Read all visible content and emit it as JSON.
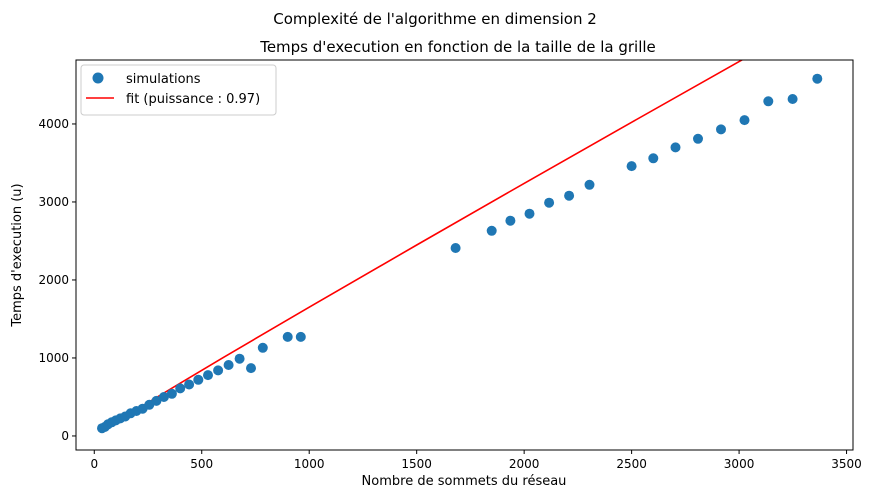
{
  "chart_data": {
    "type": "scatter",
    "suptitle": "Complexité de l'algorithme en dimension 2",
    "title": "Temps d'execution en fonction de la taille de la grille",
    "xlabel": "Nombre de sommets du réseau",
    "ylabel": "Temps d'execution (u)",
    "xlim": [
      -85,
      3530
    ],
    "ylim": [
      -180,
      4820
    ],
    "xticks": [
      0,
      500,
      1000,
      1500,
      2000,
      2500,
      3000,
      3500
    ],
    "yticks": [
      0,
      1000,
      2000,
      3000,
      4000
    ],
    "grid": false,
    "legend_position": "top-left",
    "colors": {
      "scatter": "#1f77b4",
      "fit": "#ff0000"
    },
    "series": [
      {
        "name": "simulations",
        "kind": "scatter",
        "x": [
          36,
          49,
          64,
          81,
          100,
          121,
          144,
          169,
          196,
          225,
          256,
          289,
          324,
          361,
          400,
          441,
          484,
          529,
          576,
          625,
          676,
          729,
          784,
          900,
          961,
          1681,
          1849,
          1936,
          2025,
          2116,
          2209,
          2304,
          2500,
          2601,
          2704,
          2809,
          2916,
          3025,
          3136,
          3249,
          3364
        ],
        "y": [
          100,
          115,
          150,
          175,
          200,
          225,
          250,
          290,
          320,
          350,
          400,
          450,
          500,
          540,
          610,
          660,
          720,
          780,
          840,
          910,
          990,
          870,
          1130,
          1270,
          1270,
          2410,
          2630,
          2760,
          2850,
          2990,
          3080,
          3220,
          3460,
          3560,
          3700,
          3810,
          3930,
          4050,
          4290,
          4320,
          4580
        ]
      },
      {
        "name": "fit (puissance : 0.97)",
        "kind": "line",
        "x": [
          36,
          100,
          200,
          400,
          600,
          800,
          1000,
          1500,
          2000,
          2500,
          3000,
          3364
        ],
        "y": [
          66,
          177,
          346,
          677,
          1005,
          1329,
          1651,
          2448,
          3238,
          4021,
          4800,
          5364
        ]
      }
    ]
  }
}
